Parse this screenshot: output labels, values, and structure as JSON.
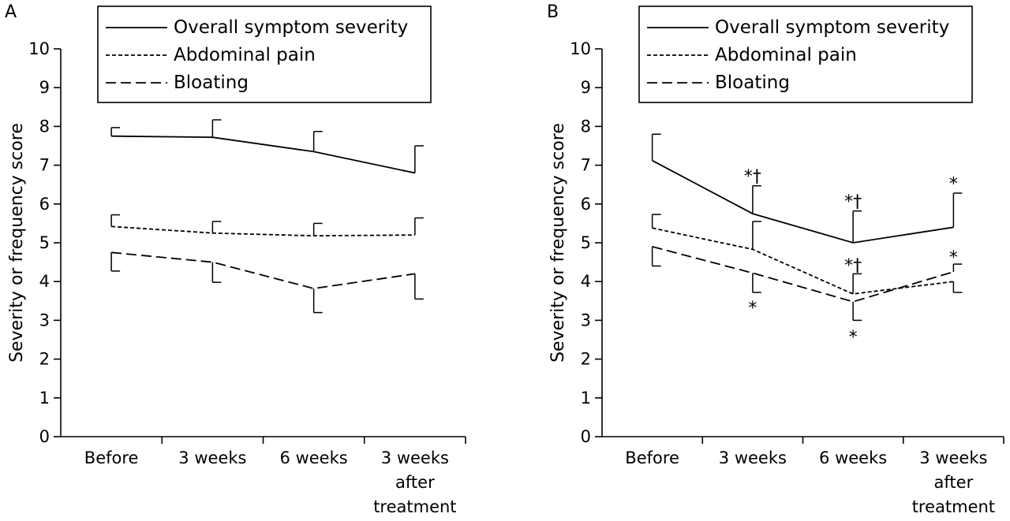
{
  "chart_data": [
    {
      "type": "line",
      "panel_label": "A",
      "ylabel": "Severity or frequency score",
      "ylim": [
        0,
        10
      ],
      "yticks": [
        0,
        1,
        2,
        3,
        4,
        5,
        6,
        7,
        8,
        9,
        10
      ],
      "categories": [
        {
          "lines": [
            "Before"
          ]
        },
        {
          "lines": [
            "3 weeks"
          ]
        },
        {
          "lines": [
            "6 weeks"
          ]
        },
        {
          "lines": [
            "3 weeks",
            "after",
            "treatment"
          ]
        }
      ],
      "legend": {
        "position": "top-right",
        "entries": [
          {
            "label": "Overall symptom severity",
            "style": "solid"
          },
          {
            "label": "Abdominal pain",
            "style": "dotted"
          },
          {
            "label": "Bloating",
            "style": "dashed"
          }
        ]
      },
      "series": [
        {
          "style": "solid",
          "values": [
            7.75,
            7.72,
            7.35,
            6.8
          ],
          "err": [
            0.22,
            0.45,
            0.52,
            0.7
          ],
          "err_dir": [
            "up",
            "up",
            "up",
            "up"
          ]
        },
        {
          "style": "dotted",
          "values": [
            5.42,
            5.25,
            5.18,
            5.2
          ],
          "err": [
            0.3,
            0.3,
            0.32,
            0.44
          ],
          "err_dir": [
            "up",
            "up",
            "up",
            "up"
          ]
        },
        {
          "style": "dashed",
          "values": [
            4.75,
            4.5,
            3.82,
            4.2
          ],
          "err": [
            0.48,
            0.52,
            0.62,
            0.65
          ],
          "err_dir": [
            "down",
            "down",
            "down",
            "down"
          ]
        }
      ],
      "annotations": []
    },
    {
      "type": "line",
      "panel_label": "B",
      "ylabel": "Severity or frequency score",
      "ylim": [
        0,
        10
      ],
      "yticks": [
        0,
        1,
        2,
        3,
        4,
        5,
        6,
        7,
        8,
        9,
        10
      ],
      "categories": [
        {
          "lines": [
            "Before"
          ]
        },
        {
          "lines": [
            "3 weeks"
          ]
        },
        {
          "lines": [
            "6 weeks"
          ]
        },
        {
          "lines": [
            "3 weeks",
            "after",
            "treatment"
          ]
        }
      ],
      "legend": {
        "position": "top-right",
        "entries": [
          {
            "label": "Overall symptom severity",
            "style": "solid"
          },
          {
            "label": "Abdominal pain",
            "style": "dotted"
          },
          {
            "label": "Bloating",
            "style": "dashed"
          }
        ]
      },
      "series": [
        {
          "style": "solid",
          "values": [
            7.12,
            5.75,
            5.0,
            5.4
          ],
          "err": [
            0.68,
            0.72,
            0.82,
            0.88
          ],
          "err_dir": [
            "up",
            "up",
            "up",
            "up"
          ]
        },
        {
          "style": "dotted",
          "values": [
            5.38,
            4.83,
            3.68,
            4.0
          ],
          "err": [
            0.35,
            0.72,
            0.52,
            0.28
          ],
          "err_dir": [
            "up",
            "up",
            "up",
            "down"
          ]
        },
        {
          "style": "dashed",
          "values": [
            4.9,
            4.22,
            3.48,
            4.25
          ],
          "err": [
            0.5,
            0.5,
            0.48,
            0.2
          ],
          "err_dir": [
            "down",
            "down",
            "down",
            "up"
          ]
        }
      ],
      "annotations": [
        {
          "text": "*†",
          "category": 1,
          "y": 6.7
        },
        {
          "text": "*",
          "category": 1,
          "y": 3.3
        },
        {
          "text": "*†",
          "category": 2,
          "y": 6.05
        },
        {
          "text": "*†",
          "category": 2,
          "y": 4.4
        },
        {
          "text": "*",
          "category": 2,
          "y": 2.55
        },
        {
          "text": "*",
          "category": 3,
          "y": 6.5
        },
        {
          "text": "*",
          "category": 3,
          "y": 4.6
        }
      ]
    }
  ]
}
